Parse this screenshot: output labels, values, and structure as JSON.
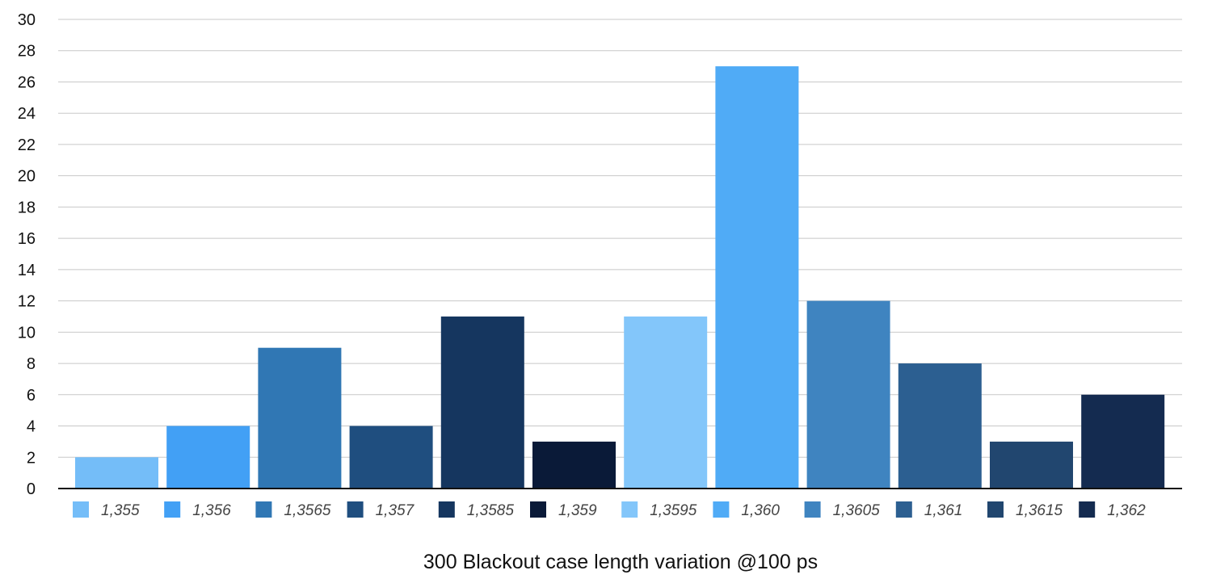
{
  "chart_data": {
    "type": "bar",
    "title": "",
    "xlabel": "300 Blackout case length variation @100 ps",
    "ylabel": "",
    "ylim": [
      0,
      30
    ],
    "yticks": [
      0,
      2,
      4,
      6,
      8,
      10,
      12,
      14,
      16,
      18,
      20,
      22,
      24,
      26,
      28,
      30
    ],
    "grid": true,
    "legend_position": "bottom",
    "series": [
      {
        "name": "1,355",
        "value": 2,
        "color": "#74BDF8"
      },
      {
        "name": "1,356",
        "value": 4,
        "color": "#42A0F5"
      },
      {
        "name": "1,3565",
        "value": 9,
        "color": "#3077B4"
      },
      {
        "name": "1,357",
        "value": 4,
        "color": "#1F4E7F"
      },
      {
        "name": "1,3585",
        "value": 11,
        "color": "#15365F"
      },
      {
        "name": "1,359",
        "value": 3,
        "color": "#0A1A38"
      },
      {
        "name": "1,3595",
        "value": 11,
        "color": "#83C6FA"
      },
      {
        "name": "1,360",
        "value": 27,
        "color": "#50ABF6"
      },
      {
        "name": "1,3605",
        "value": 12,
        "color": "#3F84C0"
      },
      {
        "name": "1,361",
        "value": 8,
        "color": "#2C5F91"
      },
      {
        "name": "1,3615",
        "value": 3,
        "color": "#21466F"
      },
      {
        "name": "1,362",
        "value": 6,
        "color": "#142B50"
      }
    ]
  }
}
